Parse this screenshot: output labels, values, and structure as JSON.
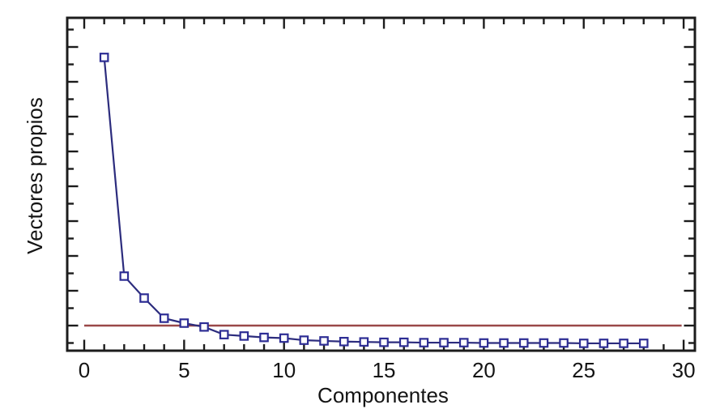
{
  "chart_data": {
    "type": "line",
    "title": "",
    "xlabel": "Componentes",
    "ylabel": "Vectores propios",
    "x": [
      1,
      2,
      3,
      4,
      5,
      6,
      7,
      8,
      9,
      10,
      11,
      12,
      13,
      14,
      15,
      16,
      17,
      18,
      19,
      20,
      21,
      22,
      23,
      24,
      25,
      26,
      27,
      28
    ],
    "series": [
      {
        "name": "Vectores propios",
        "values": [
          8.7,
          2.42,
          1.79,
          1.21,
          1.07,
          0.96,
          0.74,
          0.7,
          0.66,
          0.64,
          0.58,
          0.56,
          0.54,
          0.53,
          0.52,
          0.52,
          0.51,
          0.51,
          0.51,
          0.5,
          0.5,
          0.5,
          0.5,
          0.5,
          0.49,
          0.49,
          0.49,
          0.49
        ]
      }
    ],
    "threshold_line": {
      "value": 1.0,
      "x_start": 0,
      "x_end": 29.9,
      "color": "#9a4848"
    },
    "x_ticks_labeled": [
      0,
      5,
      10,
      15,
      20,
      25,
      30
    ],
    "x_minor_step": 1,
    "x_major_step": 5,
    "y_minor_step": 0.5,
    "y_major_step": 1,
    "y_tick_max": 9.5,
    "y_tick_labels_visible": false,
    "xlim": [
      -0.85,
      30.6
    ],
    "ylim": [
      0.3,
      9.84
    ],
    "grid": false,
    "legend_position": "none",
    "marker": "open-square",
    "line_color": "#2c2c7d",
    "marker_color": "#2d2d94",
    "marker_fill": "#ffffff",
    "axis_color": "#1c1c1c",
    "text_color": "#141414",
    "background": "#ffffff",
    "tick_style": "inward-all-four-sides"
  }
}
